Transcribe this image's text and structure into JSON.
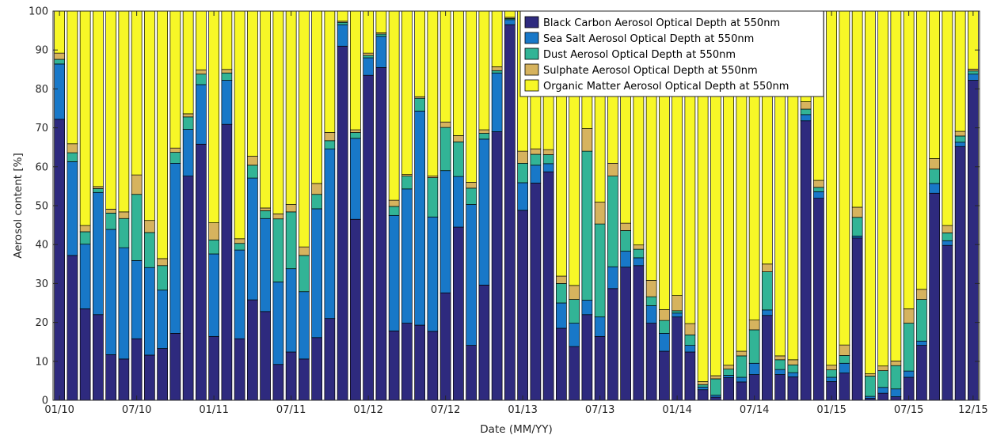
{
  "chart_data": {
    "type": "bar",
    "stacked": true,
    "title": "",
    "xlabel": "Date (MM/YY)",
    "ylabel": "Aerosol content [%]",
    "ylim": [
      0,
      100
    ],
    "yticks": [
      0,
      10,
      20,
      30,
      40,
      50,
      60,
      70,
      80,
      90,
      100
    ],
    "x_tick_labels": [
      "01/10",
      "07/10",
      "01/11",
      "07/11",
      "01/12",
      "07/12",
      "01/13",
      "07/13",
      "01/14",
      "07/14",
      "01/15",
      "07/15",
      "12/15"
    ],
    "x_tick_months": [
      0,
      6,
      12,
      18,
      24,
      30,
      36,
      42,
      48,
      54,
      60,
      66,
      71
    ],
    "categories": [
      "01/10",
      "02/10",
      "03/10",
      "04/10",
      "05/10",
      "06/10",
      "07/10",
      "08/10",
      "09/10",
      "10/10",
      "11/10",
      "12/10",
      "01/11",
      "02/11",
      "03/11",
      "04/11",
      "05/11",
      "06/11",
      "07/11",
      "08/11",
      "09/11",
      "10/11",
      "11/11",
      "12/11",
      "01/12",
      "02/12",
      "03/12",
      "04/12",
      "05/12",
      "06/12",
      "07/12",
      "08/12",
      "09/12",
      "10/12",
      "11/12",
      "12/12",
      "01/13",
      "02/13",
      "03/13",
      "04/13",
      "05/13",
      "06/13",
      "07/13",
      "08/13",
      "09/13",
      "10/13",
      "11/13",
      "12/13",
      "01/14",
      "02/14",
      "03/14",
      "04/14",
      "05/14",
      "06/14",
      "07/14",
      "08/14",
      "09/14",
      "10/14",
      "11/14",
      "12/14",
      "01/15",
      "02/15",
      "03/15",
      "04/15",
      "05/15",
      "06/15",
      "07/15",
      "08/15",
      "09/15",
      "10/15",
      "11/15",
      "12/15"
    ],
    "series": [
      {
        "name": "Black Carbon Aerosol Optical Depth at 550nm",
        "color": "#2e2a7e",
        "values": [
          72.2,
          37.2,
          23.5,
          22.0,
          11.7,
          10.6,
          15.8,
          11.6,
          13.3,
          17.2,
          57.6,
          65.8,
          16.4,
          70.9,
          15.8,
          25.8,
          22.8,
          9.2,
          12.4,
          10.6,
          16.1,
          21.0,
          91.0,
          46.5,
          83.5,
          85.5,
          17.8,
          19.8,
          19.3,
          17.7,
          27.6,
          44.5,
          14.1,
          29.6,
          69.0,
          96.5,
          48.8,
          55.8,
          58.7,
          18.5,
          13.8,
          22.0,
          16.4,
          28.7,
          34.2,
          34.6,
          19.8,
          12.6,
          21.4,
          12.4,
          2.7,
          0.8,
          5.8,
          4.7,
          6.6,
          21.8,
          6.6,
          6.0,
          71.8,
          51.9,
          4.8,
          7.0,
          41.7,
          0.5,
          1.8,
          0.9,
          5.9,
          14.1,
          53.2,
          39.8,
          65.2,
          82.2
        ]
      },
      {
        "name": "Sea Salt Aerosol Optical Depth at 550nm",
        "color": "#1878c8",
        "values": [
          14.2,
          24.1,
          16.6,
          31.4,
          32.2,
          28.6,
          20.1,
          22.5,
          15.0,
          43.7,
          12.0,
          15.3,
          21.2,
          11.3,
          22.8,
          31.3,
          23.9,
          21.2,
          21.4,
          17.3,
          33.1,
          43.6,
          5.5,
          20.8,
          4.5,
          8.0,
          29.7,
          34.5,
          55.0,
          29.4,
          31.4,
          13.0,
          36.2,
          37.5,
          15.1,
          1.3,
          7.1,
          4.6,
          2.1,
          6.5,
          6.0,
          3.7,
          5.0,
          5.6,
          4.1,
          2.0,
          4.5,
          4.6,
          1.0,
          1.7,
          0.7,
          0.5,
          0.6,
          1.2,
          2.9,
          1.4,
          1.3,
          1.1,
          1.6,
          1.7,
          1.1,
          2.5,
          0.5,
          0.5,
          1.5,
          2.0,
          1.6,
          1.1,
          2.5,
          1.2,
          1.1,
          1.6
        ]
      },
      {
        "name": "Dust Aerosol Optical Depth at 550nm",
        "color": "#32b496",
        "values": [
          1.2,
          2.3,
          3.2,
          1.0,
          4.2,
          7.5,
          17.0,
          9.0,
          6.3,
          2.8,
          3.2,
          2.7,
          3.6,
          1.9,
          1.7,
          3.3,
          2.0,
          16.2,
          14.6,
          9.3,
          3.7,
          2.1,
          0.6,
          1.5,
          0.6,
          0.6,
          2.3,
          3.3,
          3.3,
          10.1,
          11.1,
          8.9,
          4.2,
          1.5,
          0.6,
          0.3,
          5.0,
          2.8,
          2.3,
          5.0,
          6.1,
          38.3,
          23.9,
          23.3,
          5.3,
          2.2,
          2.3,
          3.3,
          0.6,
          2.7,
          0.6,
          4.2,
          1.6,
          5.5,
          8.6,
          9.8,
          2.5,
          2.0,
          1.4,
          1.1,
          1.9,
          2.0,
          4.8,
          5.2,
          4.3,
          6.0,
          12.3,
          10.7,
          3.7,
          2.0,
          1.6,
          0.8
        ]
      },
      {
        "name": "Sulphate Aerosol Optical Depth at 550nm",
        "color": "#d6b35e",
        "values": [
          1.6,
          2.3,
          1.6,
          0.5,
          1.0,
          1.7,
          5.0,
          3.1,
          1.8,
          1.1,
          0.8,
          1.1,
          4.4,
          0.9,
          1.2,
          2.3,
          0.7,
          1.3,
          1.9,
          2.2,
          2.8,
          2.1,
          0.3,
          0.7,
          0.6,
          0.3,
          1.6,
          0.4,
          0.4,
          0.4,
          1.4,
          1.6,
          1.5,
          0.9,
          1.0,
          0.3,
          3.1,
          1.4,
          1.3,
          1.9,
          3.6,
          5.8,
          5.6,
          3.3,
          1.9,
          1.1,
          4.2,
          2.8,
          3.9,
          2.9,
          0.8,
          0.8,
          1.0,
          1.2,
          2.5,
          2.0,
          1.0,
          1.3,
          1.9,
          1.8,
          1.2,
          2.7,
          2.6,
          0.6,
          1.2,
          1.2,
          3.7,
          2.6,
          2.7,
          1.9,
          1.2,
          0.5
        ]
      },
      {
        "name": "Organic Matter Aerosol Optical Depth at 550nm",
        "color": "#f7f727",
        "values": [
          10.8,
          34.1,
          55.1,
          45.1,
          50.9,
          51.6,
          42.1,
          53.8,
          63.6,
          35.2,
          26.4,
          15.1,
          54.4,
          15.0,
          58.5,
          37.3,
          50.6,
          52.1,
          49.7,
          60.6,
          44.3,
          31.2,
          2.6,
          30.5,
          10.8,
          5.6,
          48.6,
          42.0,
          22.0,
          42.4,
          28.5,
          32.0,
          44.0,
          30.5,
          14.3,
          1.6,
          36.0,
          35.4,
          35.6,
          68.1,
          70.5,
          30.2,
          49.1,
          39.1,
          54.5,
          60.1,
          69.2,
          76.7,
          73.1,
          80.3,
          95.2,
          93.7,
          91.0,
          87.4,
          79.4,
          65.0,
          88.6,
          89.6,
          23.3,
          43.5,
          91.0,
          85.8,
          50.4,
          93.2,
          91.2,
          89.9,
          76.5,
          71.5,
          37.9,
          55.1,
          30.9,
          14.9
        ]
      }
    ],
    "legend": {
      "position": "top-center"
    }
  }
}
